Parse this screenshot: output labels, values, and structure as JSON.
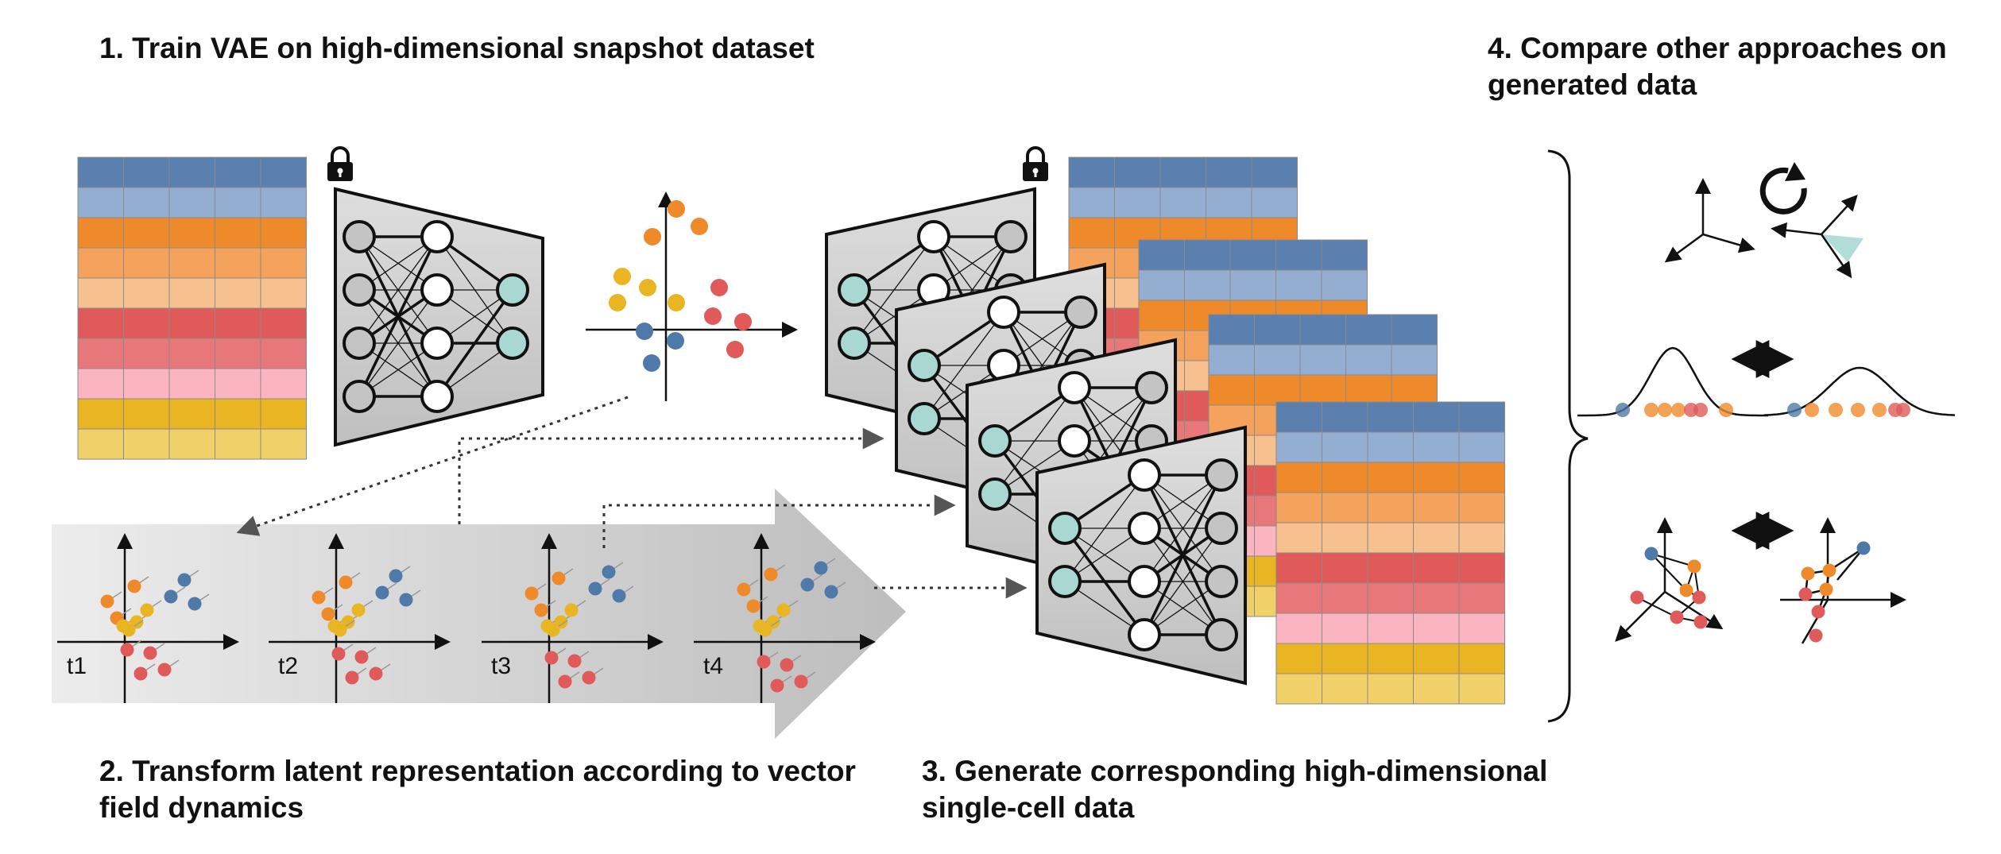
{
  "titles": {
    "step1": "1. Train VAE on high-dimensional snapshot dataset",
    "step2": "2. Transform latent representation according to vector field dynamics",
    "step3": "3. Generate corresponding high-dimensional single-cell data",
    "step4": "4. Compare other approaches on generated data"
  },
  "timepoints": [
    "t1",
    "t2",
    "t3",
    "t4"
  ],
  "colors": {
    "row_colors": [
      "#5b7fae",
      "#93aed0",
      "#ef8a2a",
      "#f4a25c",
      "#f7c08f",
      "#e05a5a",
      "#e8777a",
      "#fbb5c0",
      "#eab522",
      "#f0d068"
    ],
    "node_white": "#ffffff",
    "node_teal": "#a9d8d3",
    "node_gray": "#c4c4c4",
    "arrow_band": "#d0d0d0",
    "latent_orange": "#ef8a2a",
    "latent_yellow": "#eab522",
    "latent_red": "#e05a5a",
    "latent_blue": "#4f79a8"
  },
  "icons": [
    "lock-icon",
    "encoder-network-icon",
    "decoder-network-icon",
    "rotation-icon",
    "double-arrow-icon",
    "brace-icon"
  ]
}
